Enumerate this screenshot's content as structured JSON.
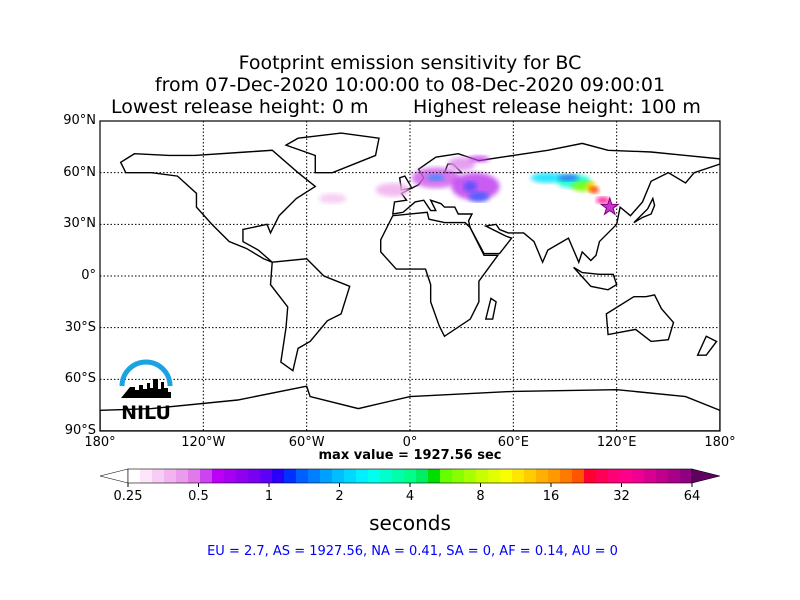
{
  "title": {
    "line1": "Footprint emission sensitivity for BC",
    "line2": "from 07-Dec-2020 10:00:00 to 08-Dec-2020 09:00:01",
    "line3a": "Lowest release height: 0 m",
    "line3b": "Highest release height: 100 m"
  },
  "map": {
    "projection": "equirectangular",
    "lon_range": [
      -180,
      180
    ],
    "lat_range": [
      -90,
      90
    ],
    "grid": "dotted",
    "lat_labels": [
      "90°N",
      "60°N",
      "30°N",
      "0°",
      "30°S",
      "60°S",
      "90°S"
    ],
    "lon_labels": [
      "180°",
      "120°W",
      "60°W",
      "0°",
      "60°E",
      "120°E",
      "180°"
    ],
    "release_site_marker": "star",
    "release_site_color": "#cc33cc"
  },
  "logo": {
    "text": "NILU",
    "color": "#1aa3e0"
  },
  "max_value": "max value = 1927.56 sec",
  "colorbar": {
    "scale": "log",
    "ticks": [
      "0.25",
      "0.5",
      "1",
      "2",
      "4",
      "8",
      "16",
      "32",
      "64"
    ],
    "label": "seconds",
    "extend": "both",
    "colors": [
      "#ffffff",
      "#fde6fb",
      "#f8cdf5",
      "#f2b3f0",
      "#eb9bec",
      "#e07ae8",
      "#cc44f0",
      "#bb00f5",
      "#a600f0",
      "#9000ee",
      "#7a00f0",
      "#5e00f5",
      "#2a00fa",
      "#0030ff",
      "#0060ff",
      "#0080ff",
      "#00a0ff",
      "#00bfff",
      "#00d8ff",
      "#00f0ff",
      "#00ffee",
      "#00ffcc",
      "#00ffaa",
      "#00ff88",
      "#00ee66",
      "#00dd00",
      "#66ff00",
      "#88ff00",
      "#a8ff00",
      "#c8ff00",
      "#e0ff00",
      "#f8ff00",
      "#ffe600",
      "#ffcc00",
      "#ffb000",
      "#ff9900",
      "#ff7a00",
      "#ff5500",
      "#ff0033",
      "#ff0055",
      "#ff0077",
      "#ff0088",
      "#f00090",
      "#d80090",
      "#c0008c",
      "#a80088",
      "#900080"
    ],
    "under_color": "#ffffff",
    "over_color": "#600060"
  },
  "regions_text": "EU = 2.7,  AS = 1927.56,  NA = 0.41,  SA = 0,  AF = 0.14,  AU = 0"
}
